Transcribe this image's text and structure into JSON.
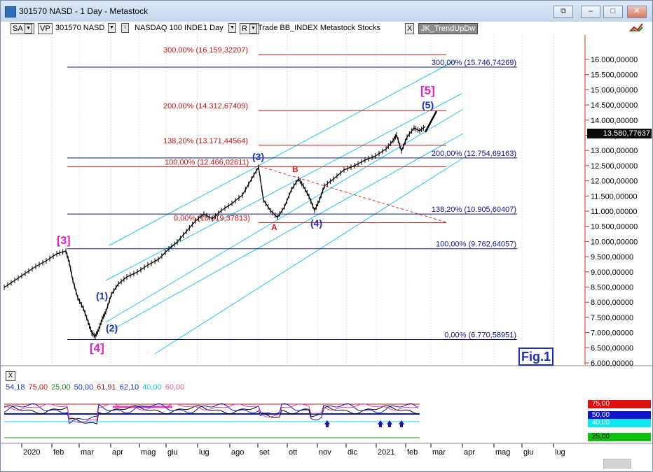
{
  "window": {
    "title": "301570 NASD - 1 Day - Metastock",
    "buttons": {
      "restore": "⧉",
      "minimize": "–",
      "maximize": "□",
      "close": "✕"
    }
  },
  "toolbar": {
    "sa": "SA",
    "vp": "VP",
    "symbol": "301570 NASD",
    "security_name": "NASDAQ 100 INDE",
    "periodicity": "1 Day",
    "r_btn": "R",
    "template": "Trade  BB_INDEX  Metastock  Stocks",
    "expert_close": "X",
    "expert": "JK_TrendUpDw"
  },
  "chart": {
    "fig_label": "Fig.1",
    "current_price": "13.580,77637",
    "y_ticks": [
      "16.000,00000",
      "15.500,00000",
      "15.000,00000",
      "14.500,00000",
      "14.000,00000",
      "13.500,00000",
      "13.000,00000",
      "12.500,00000",
      "12.000,00000",
      "11.500,00000",
      "11.000,00000",
      "10.500,00000",
      "10.000,00000",
      "9.500,00000",
      "9.000,00000",
      "8.500,00000",
      "8.000,00000",
      "7.500,00000",
      "7.000,00000",
      "6.500,00000",
      "6.000,00000"
    ],
    "fib_red": [
      {
        "label": "300,00% (16.159,32207)",
        "value": 16159.32
      },
      {
        "label": "200,00% (14.312,67409)",
        "value": 14312.67
      },
      {
        "label": "138,20% (13.171,44564)",
        "value": 13171.45
      },
      {
        "label": "100,00% (12.466,02611)",
        "value": 12466.03
      },
      {
        "label": "0,00% (10.619,37813)",
        "value": 10619.38
      }
    ],
    "fib_blue": [
      {
        "label": "300,00% (15.746,74269)",
        "value": 15746.74
      },
      {
        "label": "200,00% (12.754,69163)",
        "value": 12754.69
      },
      {
        "label": "138,20% (10.905,60407)",
        "value": 10905.6
      },
      {
        "label": "100,00% (9.762,64057)",
        "value": 9762.64
      },
      {
        "label": "0,00% (6.770,58951)",
        "value": 6770.59
      }
    ],
    "waves": {
      "w3_major": "[3]",
      "w4_major": "[4]",
      "w5_major": "[5]",
      "w1": "(1)",
      "w2": "(2)",
      "w3": "(3)",
      "w4": "(4)",
      "w5": "(5)",
      "a": "A",
      "b": "B"
    },
    "x_ticks": [
      "2020",
      "feb",
      "mar",
      "apr",
      "mag",
      "giu",
      "lug",
      "ago",
      "set",
      "ott",
      "nov",
      "dic",
      "2021",
      "feb",
      "mar",
      "apr",
      "mag",
      "giu",
      "lug"
    ]
  },
  "indicator": {
    "close": "X",
    "values": [
      {
        "text": "54,18",
        "color": "#1a37c8"
      },
      {
        "text": "75,00",
        "color": "#d01010"
      },
      {
        "text": "25,00",
        "color": "#1a8a1a"
      },
      {
        "text": "50,00",
        "color": "#1a37c8"
      },
      {
        "text": "61,91",
        "color": "#8a1a1a"
      },
      {
        "text": "62,10",
        "color": "#1a37c8"
      },
      {
        "text": "40,00",
        "color": "#18c8d8"
      },
      {
        "text": "60,00",
        "color": "#e060a0"
      }
    ],
    "right_labels": [
      {
        "text": "75,00",
        "bg": "#e01010",
        "color": "#ffffff"
      },
      {
        "text": "50,00",
        "bg": "#1414c8",
        "color": "#ffffff"
      },
      {
        "text": "40,00",
        "bg": "#10e8f0",
        "color": "#ffffff"
      },
      {
        "text": "25,00",
        "bg": "#10c010",
        "color": "#000000"
      }
    ]
  },
  "colors": {
    "fib_red": "#c81414",
    "fib_blue": "#14148c",
    "channel": "#22c8e8",
    "wave_magenta": "#e020c8",
    "wave_navy": "#14148c"
  }
}
